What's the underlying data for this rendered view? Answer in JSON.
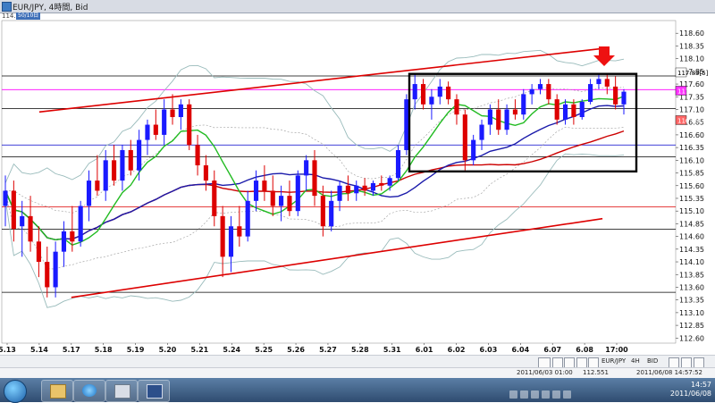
{
  "window": {
    "title": "EUR/JPY, 4時間, Bid",
    "price_badge": "114.6",
    "subtitle_button": "50/10日"
  },
  "chart_data": {
    "type": "candlestick",
    "title": "EUR/JPY, 4時間, Bid",
    "instrument": "EUR/JPY",
    "timeframe": "4H",
    "price_type": "BID",
    "ylim": [
      112.5,
      118.85
    ],
    "yticks": [
      112.6,
      112.85,
      113.1,
      113.35,
      113.6,
      113.85,
      114.1,
      114.35,
      114.6,
      114.85,
      115.1,
      115.35,
      115.6,
      115.85,
      116.1,
      116.35,
      116.6,
      116.85,
      117.1,
      117.35,
      117.6,
      117.85,
      118.1,
      118.35,
      118.6
    ],
    "xtick_labels": [
      "5.13",
      "5.14",
      "5.17",
      "5.18",
      "5.19",
      "5.20",
      "5.21",
      "5.24",
      "5.25",
      "5.26",
      "5.27",
      "5.28",
      "5.31",
      "6.01",
      "6.02",
      "6.03",
      "6.04",
      "6.07",
      "6.08",
      "17:00"
    ],
    "price_labels": [
      {
        "text": "117.83[5]",
        "value": 117.83,
        "color": "#ffffff"
      },
      {
        "text": "117.47[",
        "value": 117.47,
        "color": "#ff33ff"
      },
      {
        "text": "116.89[1]",
        "value": 116.89,
        "color": "#ff6666"
      }
    ],
    "horizontal_lines": [
      {
        "value": 117.76,
        "color": "#000000"
      },
      {
        "value": 117.49,
        "color": "#ff00ff"
      },
      {
        "value": 117.12,
        "color": "#000000"
      },
      {
        "value": 116.4,
        "color": "#0000cc"
      },
      {
        "value": 116.17,
        "color": "#000000"
      },
      {
        "value": 115.18,
        "color": "#dd0000"
      },
      {
        "value": 114.74,
        "color": "#000000"
      },
      {
        "value": 113.5,
        "color": "#000000"
      }
    ],
    "trendlines": [
      {
        "name": "upper-channel",
        "color": "#dd0000",
        "from": [
          "5.14",
          117.05
        ],
        "to": [
          "6.08",
          118.3
        ]
      },
      {
        "name": "lower-channel",
        "color": "#dd0000",
        "from": [
          "5.17",
          113.4
        ],
        "to": [
          "6.08",
          114.95
        ]
      }
    ],
    "candles": [
      {
        "o": 115.2,
        "h": 115.8,
        "l": 114.8,
        "c": 115.5
      },
      {
        "o": 115.5,
        "h": 115.7,
        "l": 114.5,
        "c": 114.75
      },
      {
        "o": 114.8,
        "h": 115.3,
        "l": 114.2,
        "c": 115.0
      },
      {
        "o": 115.0,
        "h": 115.4,
        "l": 114.3,
        "c": 114.5
      },
      {
        "o": 114.5,
        "h": 114.8,
        "l": 113.8,
        "c": 114.1
      },
      {
        "o": 114.1,
        "h": 114.4,
        "l": 113.4,
        "c": 113.6
      },
      {
        "o": 113.6,
        "h": 114.5,
        "l": 113.4,
        "c": 114.3
      },
      {
        "o": 114.3,
        "h": 114.9,
        "l": 114.0,
        "c": 114.7
      },
      {
        "o": 114.7,
        "h": 115.2,
        "l": 114.3,
        "c": 114.5
      },
      {
        "o": 114.5,
        "h": 115.3,
        "l": 114.4,
        "c": 115.2
      },
      {
        "o": 115.2,
        "h": 115.9,
        "l": 114.9,
        "c": 115.7
      },
      {
        "o": 115.7,
        "h": 116.2,
        "l": 115.4,
        "c": 115.5
      },
      {
        "o": 115.5,
        "h": 116.3,
        "l": 115.3,
        "c": 116.1
      },
      {
        "o": 116.1,
        "h": 116.4,
        "l": 115.6,
        "c": 115.7
      },
      {
        "o": 115.7,
        "h": 116.4,
        "l": 115.5,
        "c": 116.3
      },
      {
        "o": 116.3,
        "h": 116.5,
        "l": 115.8,
        "c": 115.9
      },
      {
        "o": 115.9,
        "h": 116.7,
        "l": 115.7,
        "c": 116.5
      },
      {
        "o": 116.5,
        "h": 116.9,
        "l": 116.2,
        "c": 116.8
      },
      {
        "o": 116.8,
        "h": 117.1,
        "l": 116.5,
        "c": 116.6
      },
      {
        "o": 116.6,
        "h": 117.3,
        "l": 116.4,
        "c": 117.1
      },
      {
        "o": 117.1,
        "h": 117.4,
        "l": 116.8,
        "c": 116.95
      },
      {
        "o": 116.95,
        "h": 117.3,
        "l": 116.7,
        "c": 117.2
      },
      {
        "o": 117.2,
        "h": 117.3,
        "l": 116.3,
        "c": 116.4
      },
      {
        "o": 116.4,
        "h": 116.6,
        "l": 115.8,
        "c": 116.0
      },
      {
        "o": 116.0,
        "h": 116.2,
        "l": 115.5,
        "c": 115.7
      },
      {
        "o": 115.7,
        "h": 115.9,
        "l": 114.8,
        "c": 115.0
      },
      {
        "o": 115.0,
        "h": 115.2,
        "l": 113.8,
        "c": 114.2
      },
      {
        "o": 114.2,
        "h": 115.0,
        "l": 113.9,
        "c": 114.8
      },
      {
        "o": 114.8,
        "h": 115.2,
        "l": 114.4,
        "c": 114.6
      },
      {
        "o": 114.6,
        "h": 115.5,
        "l": 114.5,
        "c": 115.3
      },
      {
        "o": 115.3,
        "h": 115.9,
        "l": 115.1,
        "c": 115.7
      },
      {
        "o": 115.7,
        "h": 116.0,
        "l": 115.3,
        "c": 115.5
      },
      {
        "o": 115.5,
        "h": 115.8,
        "l": 115.0,
        "c": 115.2
      },
      {
        "o": 115.2,
        "h": 115.6,
        "l": 114.9,
        "c": 115.4
      },
      {
        "o": 115.4,
        "h": 115.7,
        "l": 115.0,
        "c": 115.1
      },
      {
        "o": 115.1,
        "h": 115.9,
        "l": 115.0,
        "c": 115.8
      },
      {
        "o": 115.8,
        "h": 116.2,
        "l": 115.5,
        "c": 116.1
      },
      {
        "o": 116.1,
        "h": 116.3,
        "l": 115.2,
        "c": 115.4
      },
      {
        "o": 115.4,
        "h": 115.6,
        "l": 114.6,
        "c": 114.8
      },
      {
        "o": 114.8,
        "h": 115.5,
        "l": 114.7,
        "c": 115.3
      },
      {
        "o": 115.3,
        "h": 115.7,
        "l": 115.1,
        "c": 115.6
      },
      {
        "o": 115.6,
        "h": 115.8,
        "l": 115.3,
        "c": 115.45
      },
      {
        "o": 115.45,
        "h": 115.7,
        "l": 115.3,
        "c": 115.6
      },
      {
        "o": 115.6,
        "h": 115.75,
        "l": 115.4,
        "c": 115.5
      },
      {
        "o": 115.5,
        "h": 115.7,
        "l": 115.4,
        "c": 115.65
      },
      {
        "o": 115.65,
        "h": 115.8,
        "l": 115.5,
        "c": 115.6
      },
      {
        "o": 115.6,
        "h": 115.8,
        "l": 115.5,
        "c": 115.75
      },
      {
        "o": 115.75,
        "h": 116.4,
        "l": 115.7,
        "c": 116.3
      },
      {
        "o": 116.3,
        "h": 117.4,
        "l": 116.2,
        "c": 117.3
      },
      {
        "o": 117.3,
        "h": 117.8,
        "l": 117.1,
        "c": 117.6
      },
      {
        "o": 117.6,
        "h": 117.7,
        "l": 117.1,
        "c": 117.2
      },
      {
        "o": 117.2,
        "h": 117.5,
        "l": 116.9,
        "c": 117.35
      },
      {
        "o": 117.35,
        "h": 117.7,
        "l": 117.2,
        "c": 117.55
      },
      {
        "o": 117.55,
        "h": 117.65,
        "l": 117.2,
        "c": 117.3
      },
      {
        "o": 117.3,
        "h": 117.4,
        "l": 116.8,
        "c": 117.0
      },
      {
        "o": 117.0,
        "h": 117.1,
        "l": 115.9,
        "c": 116.1
      },
      {
        "o": 116.1,
        "h": 116.6,
        "l": 116.0,
        "c": 116.5
      },
      {
        "o": 116.5,
        "h": 116.9,
        "l": 116.3,
        "c": 116.8
      },
      {
        "o": 116.8,
        "h": 117.2,
        "l": 116.6,
        "c": 117.1
      },
      {
        "o": 117.1,
        "h": 117.3,
        "l": 116.6,
        "c": 116.7
      },
      {
        "o": 116.7,
        "h": 117.2,
        "l": 116.6,
        "c": 117.1
      },
      {
        "o": 117.1,
        "h": 117.3,
        "l": 116.9,
        "c": 117.0
      },
      {
        "o": 117.0,
        "h": 117.5,
        "l": 116.9,
        "c": 117.4
      },
      {
        "o": 117.4,
        "h": 117.6,
        "l": 117.2,
        "c": 117.5
      },
      {
        "o": 117.5,
        "h": 117.7,
        "l": 117.4,
        "c": 117.6
      },
      {
        "o": 117.6,
        "h": 117.7,
        "l": 117.2,
        "c": 117.3
      },
      {
        "o": 117.3,
        "h": 117.4,
        "l": 116.8,
        "c": 116.9
      },
      {
        "o": 116.9,
        "h": 117.3,
        "l": 116.8,
        "c": 117.2
      },
      {
        "o": 117.2,
        "h": 117.3,
        "l": 116.8,
        "c": 116.95
      },
      {
        "o": 116.95,
        "h": 117.3,
        "l": 116.9,
        "c": 117.25
      },
      {
        "o": 117.25,
        "h": 117.7,
        "l": 117.2,
        "c": 117.6
      },
      {
        "o": 117.6,
        "h": 117.8,
        "l": 117.5,
        "c": 117.7
      },
      {
        "o": 117.7,
        "h": 117.8,
        "l": 117.4,
        "c": 117.55
      },
      {
        "o": 117.55,
        "h": 117.75,
        "l": 117.1,
        "c": 117.2
      },
      {
        "o": 117.2,
        "h": 117.5,
        "l": 117.0,
        "c": 117.45
      }
    ]
  },
  "toolbar": {
    "instrument": "EUR/JPY",
    "timeframe": "4H",
    "price_type": "BID"
  },
  "statusbar": {
    "cursor_time": "2011/06/03 01:00",
    "cursor_price": "112.551",
    "server_time": "2011/06/08 14:57:52"
  },
  "taskbar": {
    "time": "14:57",
    "date": "2011/06/08"
  },
  "colors": {
    "bull": "#1a1aff",
    "bear": "#dd0000",
    "ma_fast": "#22bb22",
    "ma_slow": "#1a1aaa",
    "ma_long": "#cc0000",
    "bollinger": "#99bbbb"
  }
}
